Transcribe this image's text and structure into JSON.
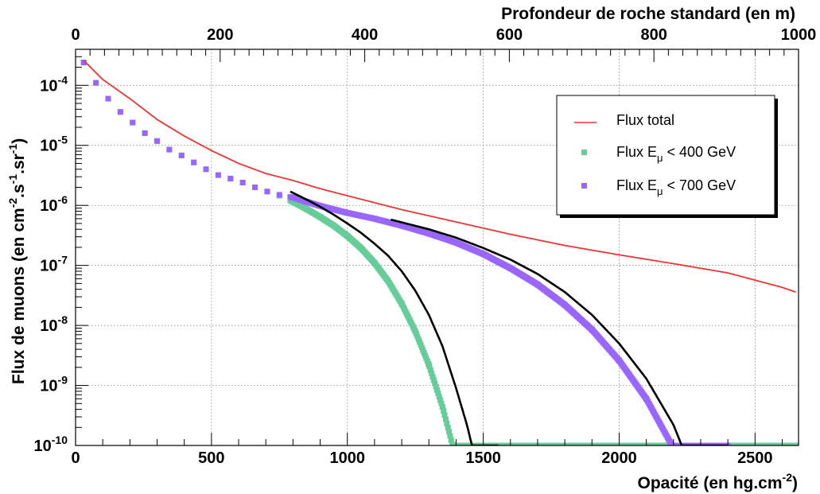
{
  "chart_data": {
    "type": "scatter",
    "xlabel": "Opacité (en hg.cm",
    "xlabel_sup": "-2",
    "xlabel_end": ")",
    "top_xlabel": "Profondeur de roche standard (en m)",
    "ylabel": "Flux de muons (en cm",
    "ylabel_parts": [
      "Flux de muons (en cm",
      "-2",
      ".s",
      "-1",
      ".sr",
      "-1",
      ")"
    ],
    "xlim": [
      0,
      2660
    ],
    "top_xlim": [
      0,
      1000
    ],
    "ylim_log10": [
      -10,
      -3.4
    ],
    "y_scale": "log",
    "x_ticks": [
      "0",
      "500",
      "1000",
      "1500",
      "2000",
      "2500"
    ],
    "top_x_ticks": [
      "0",
      "200",
      "400",
      "600",
      "800",
      "1000"
    ],
    "y_tick_exponents": [
      "-10",
      "-9",
      "-8",
      "-7",
      "-6",
      "-5",
      "-4"
    ],
    "y_tick_base": "10",
    "grid": true,
    "legend_position": "top-right",
    "series": [
      {
        "name": "Flux total",
        "kind": "line",
        "color": "#ee3333",
        "x": [
          30,
          100,
          200,
          300,
          400,
          500,
          600,
          700,
          800,
          900,
          1000,
          1200,
          1400,
          1600,
          1800,
          2000,
          2200,
          2400,
          2600,
          2650
        ],
        "y": [
          0.00026,
          0.000125,
          6e-05,
          2.7e-05,
          1.43e-05,
          8.2e-06,
          5e-06,
          3.4e-06,
          2.6e-06,
          1.9e-06,
          1.45e-06,
          8.5e-07,
          5.3e-07,
          3.3e-07,
          2.15e-07,
          1.5e-07,
          1.07e-07,
          7.5e-08,
          4.3e-08,
          3.6e-08
        ]
      },
      {
        "name": "Flux E",
        "name_sub": "μ",
        "name_end": " < 400 GeV",
        "kind": "markers",
        "color": "#66cc99",
        "x": [
          30,
          75,
          120,
          165,
          210,
          255,
          300,
          345,
          390,
          435,
          480,
          525,
          570,
          615,
          660,
          705,
          750,
          800,
          850,
          900,
          950,
          1000,
          1050,
          1100,
          1150,
          1200,
          1250,
          1300,
          1350,
          1400,
          1440,
          1480,
          1500,
          1520,
          1530,
          1540,
          1550,
          1600,
          1800,
          2000,
          2200,
          2400,
          2650
        ],
        "y": [
          0.00024,
          0.00011,
          6e-05,
          3.6e-05,
          2.4e-05,
          1.6e-05,
          1.18e-05,
          8.5e-06,
          6.8e-06,
          5.2e-06,
          4e-06,
          3.2e-06,
          2.8e-06,
          2.4e-06,
          2e-06,
          1.7e-06,
          1.45e-06,
          1.15e-06,
          8.7e-07,
          6.4e-07,
          4.6e-07,
          3.1e-07,
          1.95e-07,
          1.1e-07,
          5.5e-08,
          2.3e-08,
          8e-09,
          2.2e-09,
          4.4e-10,
          6e-11,
          1e-11,
          1e-12,
          1e-13,
          1e-14,
          1e-15,
          1e-16,
          1e-16,
          1e-16,
          1e-16,
          1e-16,
          1e-16,
          1e-16,
          1e-16
        ]
      },
      {
        "name": "Flux E",
        "name_sub": "μ",
        "name_end": " < 700 GeV",
        "kind": "markers",
        "color": "#9966ff",
        "x": [
          30,
          75,
          120,
          165,
          210,
          255,
          300,
          345,
          390,
          435,
          480,
          525,
          570,
          615,
          660,
          705,
          750,
          800,
          900,
          1000,
          1100,
          1200,
          1300,
          1400,
          1500,
          1600,
          1700,
          1800,
          1900,
          2000,
          2100,
          2200,
          2250,
          2300,
          2350,
          2380,
          2400
        ],
        "y": [
          0.00024,
          0.00011,
          6e-05,
          3.6e-05,
          2.4e-05,
          1.6e-05,
          1.18e-05,
          8.5e-06,
          6.8e-06,
          5.2e-06,
          4e-06,
          3.2e-06,
          2.8e-06,
          2.4e-06,
          2e-06,
          1.7e-06,
          1.5e-06,
          1.35e-06,
          9.8e-07,
          7.5e-07,
          6e-07,
          4.6e-07,
          3.4e-07,
          2.4e-07,
          1.55e-07,
          9e-08,
          4.8e-08,
          2.2e-08,
          8.5e-09,
          2.6e-09,
          6e-10,
          9e-11,
          2.5e-11,
          4e-12,
          3e-13,
          1e-14,
          1e-16
        ]
      },
      {
        "name": "",
        "kind": "fit",
        "color": "#000000",
        "x": [
          790,
          850,
          900,
          950,
          1000,
          1050,
          1100,
          1150,
          1200,
          1250,
          1300,
          1350,
          1400,
          1440,
          1480,
          1500,
          1520,
          1540,
          1555
        ],
        "y": [
          1.7e-06,
          1.25e-06,
          9.5e-07,
          7e-07,
          5e-07,
          3.5e-07,
          2.3e-07,
          1.45e-07,
          8e-08,
          3.8e-08,
          1.5e-08,
          4.5e-09,
          9e-10,
          2.2e-10,
          4e-11,
          1.2e-11,
          2e-12,
          2e-14,
          1e-16
        ]
      },
      {
        "name": "",
        "kind": "fit",
        "color": "#000000",
        "x": [
          1160,
          1300,
          1400,
          1500,
          1600,
          1700,
          1800,
          1900,
          2000,
          2100,
          2200,
          2250,
          2300,
          2350,
          2380,
          2400
        ],
        "y": [
          5.8e-07,
          4e-07,
          2.9e-07,
          1.95e-07,
          1.25e-07,
          7.2e-08,
          3.6e-08,
          1.5e-08,
          5e-09,
          1.3e-09,
          2.2e-10,
          6e-11,
          1e-11,
          8e-13,
          2e-14,
          1e-16
        ]
      }
    ]
  }
}
